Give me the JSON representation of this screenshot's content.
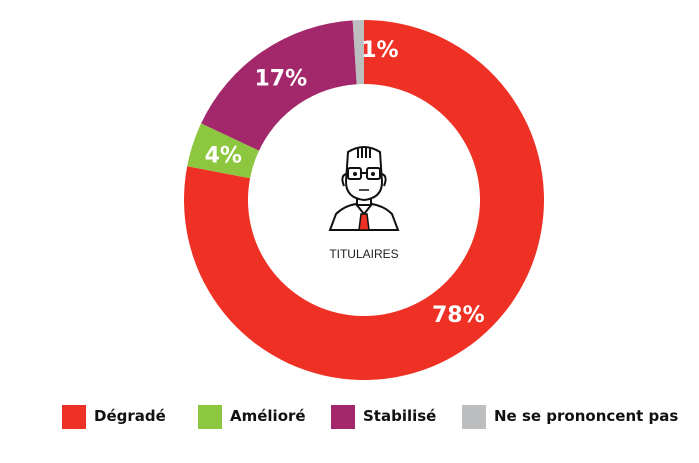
{
  "chart_data": {
    "type": "pie",
    "donut": true,
    "start_angle_deg": 0,
    "direction": "clockwise",
    "center_label": "TITULAIRES",
    "center_icon": "man-with-glasses-and-tie-icon",
    "slices": [
      {
        "name": "Dégradé",
        "value": 78,
        "label": "78%",
        "color": "#ee3124",
        "label_color": "#ffffff"
      },
      {
        "name": "Amélioré",
        "value": 4,
        "label": "4%",
        "color": "#8dc63f",
        "label_color": "#ffffff"
      },
      {
        "name": "Stabilisé",
        "value": 17,
        "label": "17%",
        "color": "#a3276b",
        "label_color": "#ffffff"
      },
      {
        "name": "Ne se prononcent pas",
        "value": 1,
        "label": "1%",
        "color": "#bcbec0",
        "label_color": "#f3a19a"
      }
    ],
    "legend_position": "bottom"
  }
}
